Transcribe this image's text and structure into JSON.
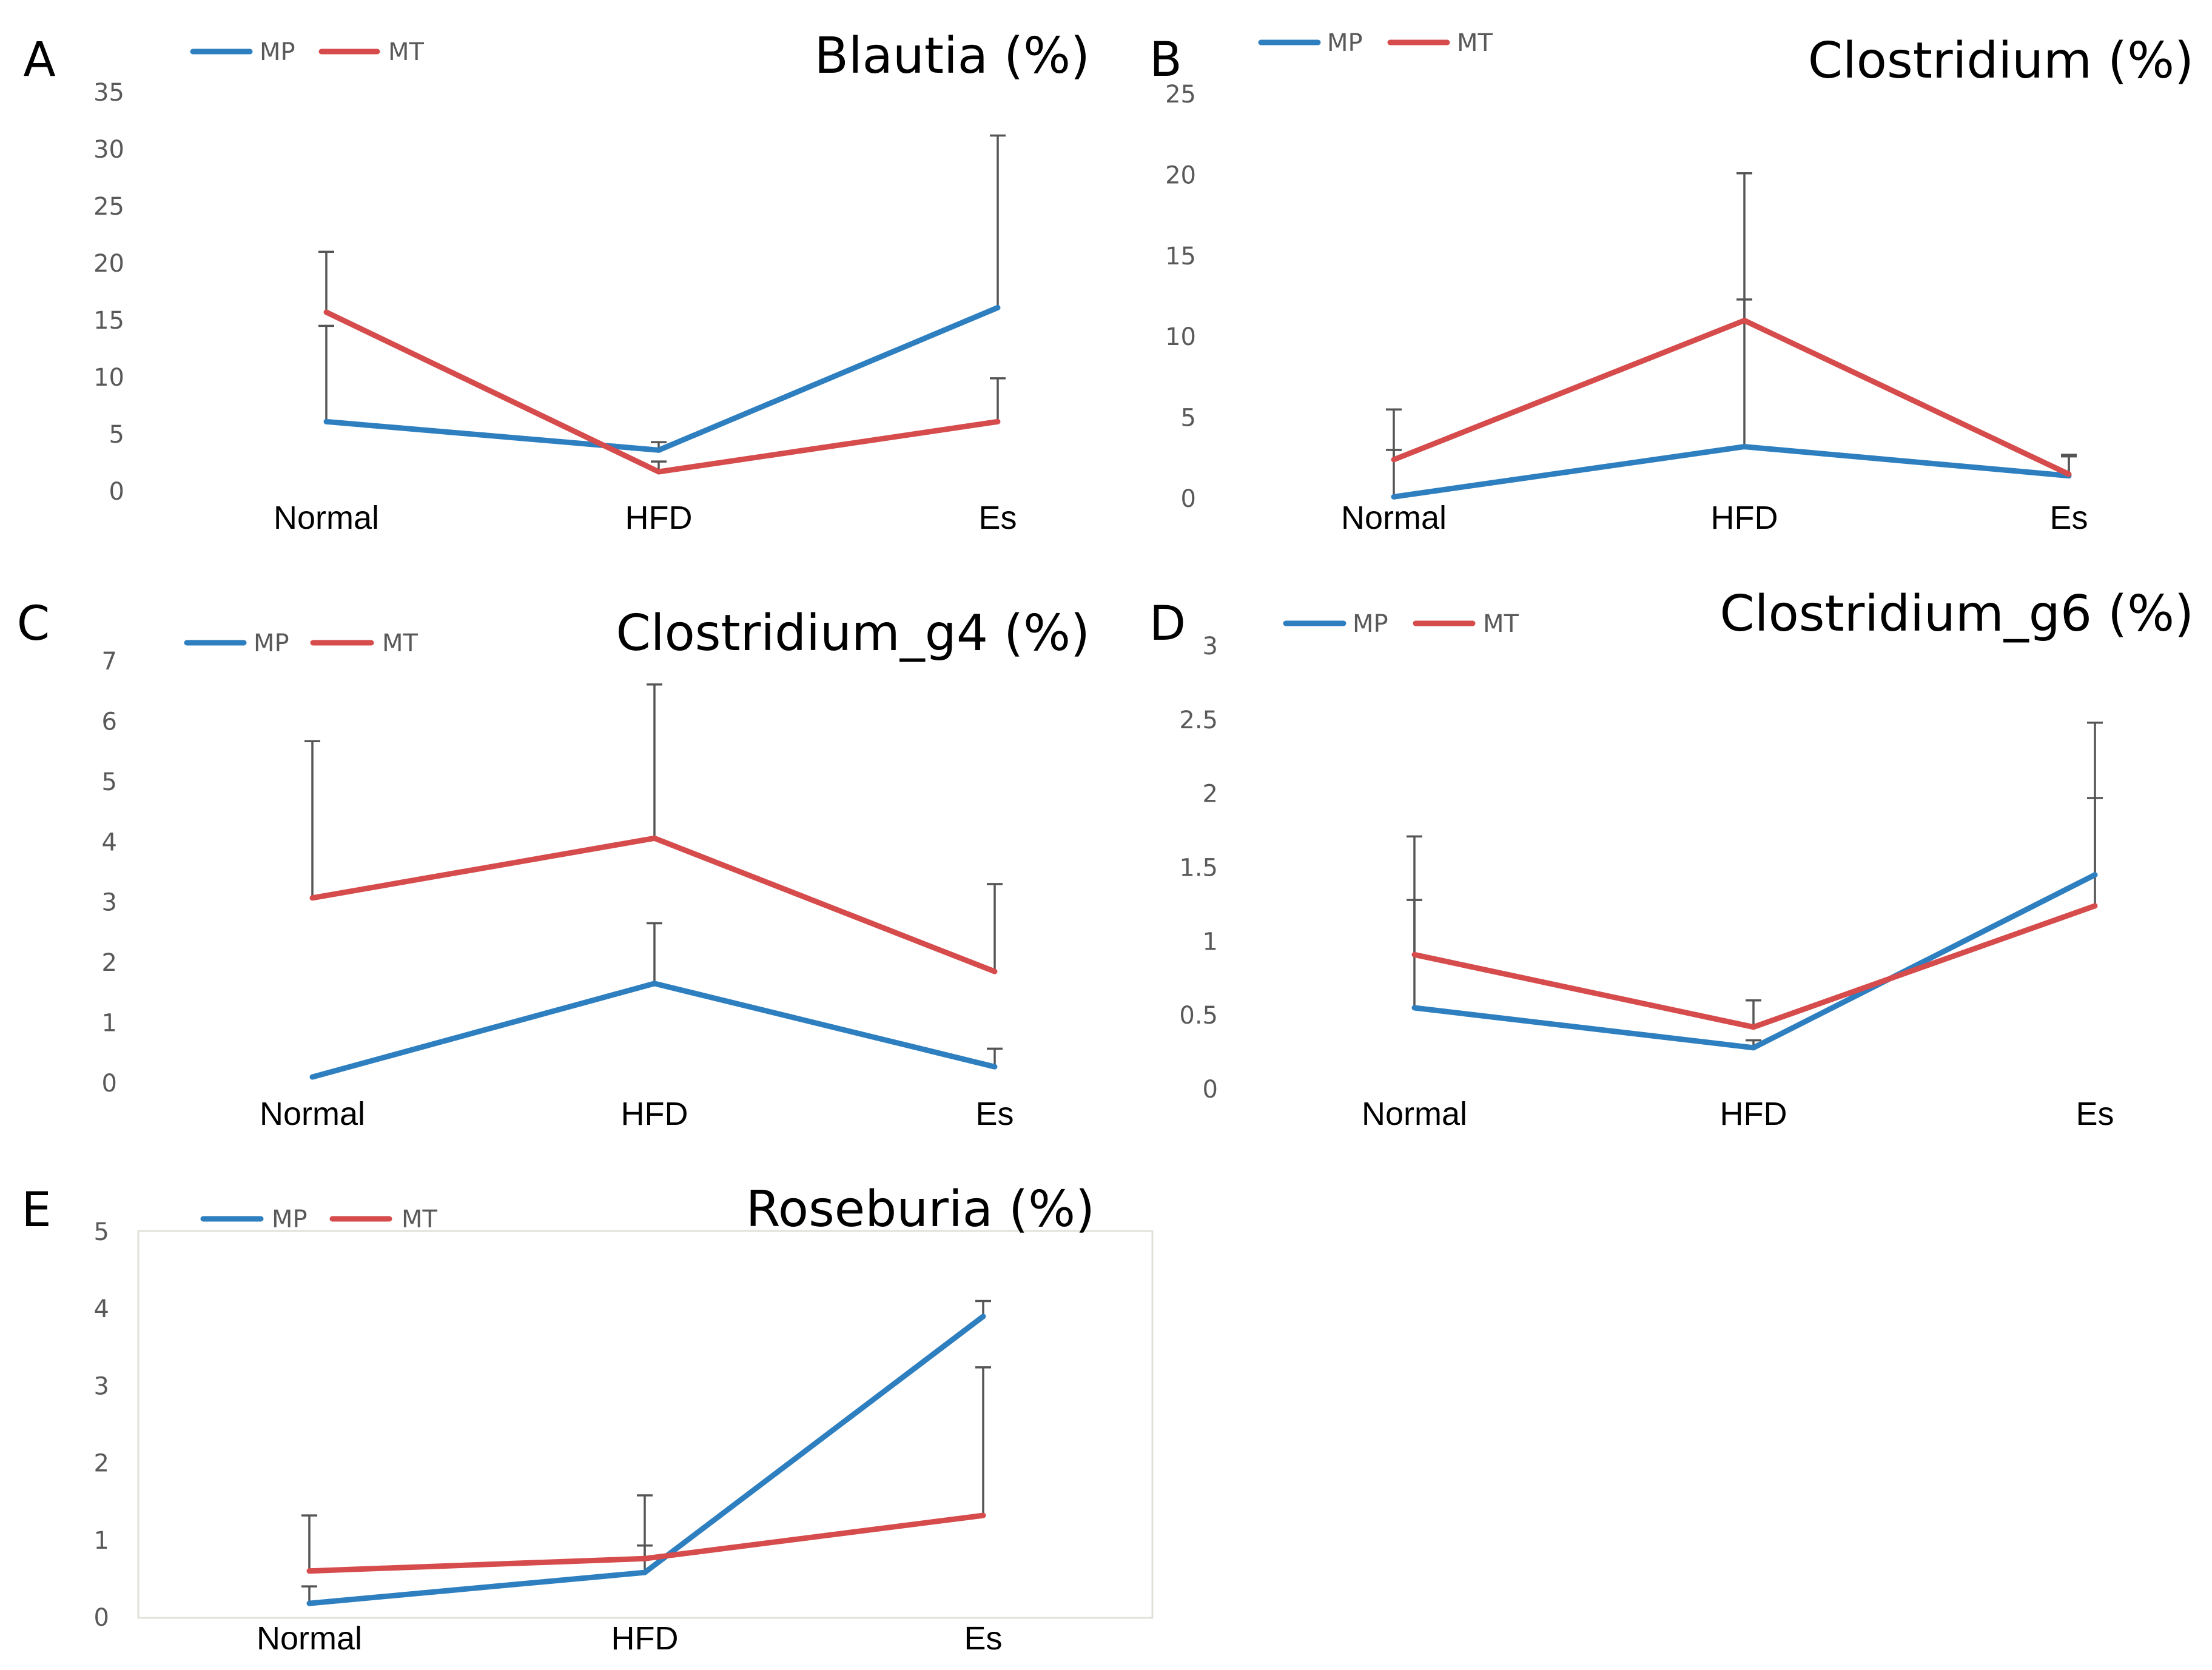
{
  "colors": {
    "MP": "#2E7FC0",
    "MT": "#D64B4B",
    "errorbar": "#555555",
    "tick_text": "#595959",
    "frame": "#E2E2D9"
  },
  "chart_data": [
    {
      "panel": "A",
      "type": "line",
      "title": "Blautia (%)",
      "categories": [
        "Normal",
        "HFD",
        "Es"
      ],
      "yticks": [
        "0",
        "5",
        "10",
        "15",
        "20",
        "25",
        "30",
        "35"
      ],
      "ylim": [
        0,
        35
      ],
      "grid": false,
      "legend": "top-left",
      "series": [
        {
          "name": "MP",
          "values": [
            6.1,
            3.6,
            16.1
          ],
          "errors": [
            8.4,
            0.7,
            15.1
          ]
        },
        {
          "name": "MT",
          "values": [
            15.7,
            1.7,
            6.1
          ],
          "errors": [
            5.3,
            0.9,
            3.8
          ]
        }
      ]
    },
    {
      "panel": "B",
      "type": "line",
      "title": "Clostridium (%)",
      "categories": [
        "Normal",
        "HFD",
        "Es"
      ],
      "yticks": [
        "0",
        "5",
        "10",
        "15",
        "20",
        "25"
      ],
      "ylim": [
        0,
        25
      ],
      "grid": false,
      "legend": "top-left",
      "series": [
        {
          "name": "MP",
          "values": [
            0.1,
            3.2,
            1.4
          ],
          "errors": [
            2.9,
            9.1,
            1.3
          ]
        },
        {
          "name": "MT",
          "values": [
            2.4,
            11.0,
            1.5
          ],
          "errors": [
            3.1,
            9.1,
            1.1
          ]
        }
      ]
    },
    {
      "panel": "C",
      "type": "line",
      "title": "Clostridium_g4 (%)",
      "categories": [
        "Normal",
        "HFD",
        "Es"
      ],
      "yticks": [
        "0",
        "1",
        "2",
        "3",
        "4",
        "5",
        "6",
        "7"
      ],
      "ylim": [
        0,
        7
      ],
      "grid": false,
      "legend": "top-left",
      "series": [
        {
          "name": "MP",
          "values": [
            0.1,
            1.65,
            0.27
          ],
          "errors": [
            0.0,
            1.0,
            0.3
          ]
        },
        {
          "name": "MT",
          "values": [
            3.07,
            4.06,
            1.85
          ],
          "errors": [
            2.6,
            2.55,
            1.45
          ]
        }
      ]
    },
    {
      "panel": "D",
      "type": "line",
      "title": "Clostridium_g6 (%)",
      "categories": [
        "Normal",
        "HFD",
        "Es"
      ],
      "yticks": [
        "0",
        "0.5",
        "1",
        "1.5",
        "2",
        "2.5",
        "3"
      ],
      "ylim": [
        0,
        3
      ],
      "grid": false,
      "legend": "top-left",
      "series": [
        {
          "name": "MP",
          "values": [
            0.55,
            0.28,
            1.45
          ],
          "errors": [
            0.73,
            0.05,
            0.52
          ]
        },
        {
          "name": "MT",
          "values": [
            0.91,
            0.42,
            1.24
          ],
          "errors": [
            0.8,
            0.18,
            1.24
          ]
        }
      ]
    },
    {
      "panel": "E",
      "type": "line",
      "title": "Roseburia (%)",
      "categories": [
        "Normal",
        "HFD",
        "Es"
      ],
      "yticks": [
        "0",
        "1",
        "2",
        "3",
        "4",
        "5"
      ],
      "ylim": [
        0,
        5
      ],
      "grid": false,
      "legend": "top-left",
      "series": [
        {
          "name": "MP",
          "values": [
            0.18,
            0.58,
            3.9
          ],
          "errors": [
            0.22,
            0.35,
            0.2
          ]
        },
        {
          "name": "MT",
          "values": [
            0.6,
            0.76,
            1.32
          ],
          "errors": [
            0.72,
            0.82,
            1.92
          ]
        }
      ]
    }
  ]
}
